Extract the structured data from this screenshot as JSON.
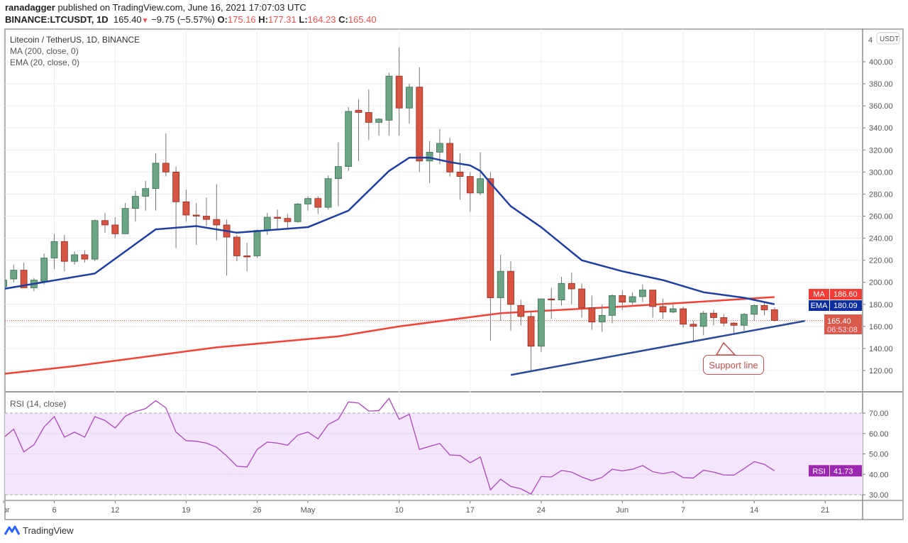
{
  "header": {
    "author": "ranadagger",
    "published_text": "published on TradingView.com, June 16, 2021 17:07:03 UTC",
    "symbol": "BINANCE:LTCUSDT, 1D",
    "last": "165.40",
    "change": "−9.75 (−5.57%)",
    "o_label": "O:",
    "o": "175.16",
    "h_label": "H:",
    "h": "177.31",
    "l_label": "L:",
    "l": "164.23",
    "c_label": "C:",
    "c": "165.40"
  },
  "legend": {
    "title": "Litecoin / TetherUS, 1D, BINANCE",
    "ma": "MA (200, close, 0)",
    "ema": "EMA (20, close, 0)",
    "rsi": "RSI (14, close)"
  },
  "badges": {
    "currency": "USDT",
    "ma_label": "MA",
    "ma_value": "186.60",
    "ema_label": "EMA",
    "ema_value": "180.09",
    "price_value": "165.40",
    "countdown": "06:53:08",
    "rsi_label": "RSI",
    "rsi_value": "41.73"
  },
  "annotation": {
    "text": "Support line"
  },
  "logo": {
    "text": "TradingView"
  },
  "colors": {
    "up": "#6ba583",
    "down": "#d75442",
    "ma": "#f44336",
    "ema": "#1e3fa0",
    "rsi": "#ab47bc",
    "support": "#2a4a9a"
  },
  "chart_data": [
    {
      "type": "candlestick",
      "price_axis": {
        "ticks": [
          "400.00",
          "380.00",
          "360.00",
          "340.00",
          "320.00",
          "300.00",
          "280.00",
          "260.00",
          "240.00",
          "220.00",
          "200.00",
          "180.00",
          "160.00",
          "140.00",
          "120.00"
        ],
        "top_partial": "4"
      },
      "x_axis": {
        "ticks": [
          {
            "label": "Apr",
            "date": "04-01"
          },
          {
            "label": "6",
            "date": "04-06"
          },
          {
            "label": "12",
            "date": "04-12"
          },
          {
            "label": "19",
            "date": "04-19"
          },
          {
            "label": "26",
            "date": "04-26"
          },
          {
            "label": "May",
            "date": "05-01"
          },
          {
            "label": "10",
            "date": "05-10"
          },
          {
            "label": "17",
            "date": "05-17"
          },
          {
            "label": "24",
            "date": "05-24"
          },
          {
            "label": "Jun",
            "date": "06-01"
          },
          {
            "label": "7",
            "date": "06-07"
          },
          {
            "label": "14",
            "date": "06-14"
          },
          {
            "label": "21",
            "date": "06-21"
          }
        ]
      },
      "candles_ohlc": [
        [
          "04-01",
          196,
          204,
          193,
          202
        ],
        [
          "04-02",
          203,
          216,
          200,
          211
        ],
        [
          "04-03",
          211,
          218,
          195,
          195
        ],
        [
          "04-04",
          195,
          204,
          192,
          202
        ],
        [
          "04-05",
          201,
          226,
          198,
          222
        ],
        [
          "04-06",
          222,
          244,
          212,
          237
        ],
        [
          "04-07",
          237,
          243,
          210,
          219
        ],
        [
          "04-08",
          219,
          228,
          216,
          225
        ],
        [
          "04-09",
          225,
          229,
          218,
          221
        ],
        [
          "04-10",
          221,
          257,
          219,
          256
        ],
        [
          "04-11",
          256,
          263,
          245,
          252
        ],
        [
          "04-12",
          252,
          259,
          240,
          244
        ],
        [
          "04-13",
          244,
          272,
          244,
          267
        ],
        [
          "04-14",
          267,
          283,
          255,
          278
        ],
        [
          "04-15",
          278,
          292,
          265,
          285
        ],
        [
          "04-16",
          285,
          317,
          265,
          308
        ],
        [
          "04-17",
          308,
          335,
          296,
          300
        ],
        [
          "04-18",
          300,
          305,
          231,
          273
        ],
        [
          "04-19",
          273,
          284,
          255,
          261
        ],
        [
          "04-20",
          261,
          272,
          234,
          260
        ],
        [
          "04-21",
          260,
          277,
          251,
          257
        ],
        [
          "04-22",
          257,
          289,
          238,
          252
        ],
        [
          "04-23",
          252,
          257,
          206,
          241
        ],
        [
          "04-24",
          241,
          243,
          219,
          224
        ],
        [
          "04-25",
          224,
          236,
          210,
          223
        ],
        [
          "04-26",
          224,
          248,
          222,
          247
        ],
        [
          "04-27",
          247,
          263,
          243,
          259
        ],
        [
          "04-28",
          259,
          266,
          248,
          258
        ],
        [
          "04-29",
          258,
          262,
          249,
          255
        ],
        [
          "04-30",
          255,
          272,
          254,
          271
        ],
        [
          "05-01",
          271,
          278,
          265,
          276
        ],
        [
          "05-02",
          276,
          278,
          262,
          268
        ],
        [
          "05-03",
          268,
          297,
          266,
          294
        ],
        [
          "05-04",
          294,
          327,
          269,
          305
        ],
        [
          "05-05",
          305,
          359,
          301,
          355
        ],
        [
          "05-06",
          356,
          366,
          310,
          354
        ],
        [
          "05-07",
          354,
          375,
          329,
          345
        ],
        [
          "05-08",
          345,
          349,
          333,
          348
        ],
        [
          "05-09",
          347,
          390,
          333,
          387
        ],
        [
          "05-10",
          387,
          413,
          333,
          358
        ],
        [
          "05-11",
          358,
          380,
          344,
          377
        ],
        [
          "05-12",
          377,
          395,
          300,
          310
        ],
        [
          "05-13",
          310,
          328,
          290,
          318
        ],
        [
          "05-14",
          318,
          339,
          307,
          326
        ],
        [
          "05-15",
          326,
          331,
          296,
          300
        ],
        [
          "05-16",
          300,
          317,
          275,
          296
        ],
        [
          "05-17",
          296,
          300,
          264,
          281
        ],
        [
          "05-18",
          281,
          318,
          279,
          294
        ],
        [
          "05-19",
          294,
          300,
          147,
          186
        ],
        [
          "05-20",
          186,
          225,
          165,
          210
        ],
        [
          "05-21",
          210,
          219,
          156,
          180
        ],
        [
          "05-22",
          179,
          184,
          161,
          169
        ],
        [
          "05-23",
          169,
          174,
          119,
          142
        ],
        [
          "05-24",
          142,
          185,
          137,
          185
        ],
        [
          "05-25",
          185,
          195,
          167,
          184
        ],
        [
          "05-26",
          184,
          205,
          179,
          199
        ],
        [
          "05-27",
          199,
          209,
          180,
          194
        ],
        [
          "05-28",
          194,
          199,
          168,
          177
        ],
        [
          "05-29",
          177,
          188,
          157,
          164
        ],
        [
          "05-30",
          164,
          180,
          155,
          170
        ],
        [
          "05-31",
          170,
          189,
          163,
          188
        ],
        [
          "06-01",
          188,
          193,
          175,
          182
        ],
        [
          "06-02",
          182,
          191,
          180,
          187
        ],
        [
          "06-03",
          187,
          198,
          182,
          193
        ],
        [
          "06-04",
          193,
          193,
          168,
          178
        ],
        [
          "06-05",
          178,
          185,
          167,
          173
        ],
        [
          "06-06",
          173,
          180,
          172,
          176
        ],
        [
          "06-07",
          176,
          178,
          159,
          162
        ],
        [
          "06-08",
          162,
          165,
          146,
          160
        ],
        [
          "06-09",
          160,
          174,
          152,
          172
        ],
        [
          "06-10",
          172,
          175,
          161,
          168
        ],
        [
          "06-11",
          168,
          171,
          160,
          163
        ],
        [
          "06-12",
          163,
          164,
          154,
          161
        ],
        [
          "06-13",
          161,
          172,
          156,
          171
        ],
        [
          "06-14",
          171,
          180,
          165,
          179
        ],
        [
          "06-15",
          179,
          181,
          170,
          175
        ],
        [
          "06-16",
          175.16,
          177.31,
          164.23,
          165.4
        ]
      ],
      "ema20": [
        [
          "04-01",
          194
        ],
        [
          "04-10",
          208
        ],
        [
          "04-16",
          248
        ],
        [
          "04-20",
          251
        ],
        [
          "04-24",
          245
        ],
        [
          "05-01",
          250
        ],
        [
          "05-05",
          265
        ],
        [
          "05-09",
          301
        ],
        [
          "05-11",
          313
        ],
        [
          "05-13",
          313
        ],
        [
          "05-15",
          309
        ],
        [
          "05-17",
          306
        ],
        [
          "05-18",
          301
        ],
        [
          "05-19",
          290
        ],
        [
          "05-21",
          269
        ],
        [
          "05-24",
          250
        ],
        [
          "05-28",
          220
        ],
        [
          "06-01",
          210
        ],
        [
          "06-05",
          202
        ],
        [
          "06-09",
          191
        ],
        [
          "06-13",
          186
        ],
        [
          "06-16",
          180.09
        ]
      ],
      "ma200": [
        [
          "04-01",
          117
        ],
        [
          "04-08",
          124
        ],
        [
          "04-22",
          141
        ],
        [
          "05-04",
          151
        ],
        [
          "05-10",
          160
        ],
        [
          "05-20",
          172
        ],
        [
          "06-01",
          178
        ],
        [
          "06-16",
          186.6
        ]
      ],
      "support_line": [
        [
          "05-21",
          116
        ],
        [
          "06-19",
          165
        ]
      ],
      "last_price": 165.4
    },
    {
      "type": "line",
      "title": "RSI (14, close)",
      "y_axis": {
        "ticks": [
          "70.00",
          "60.00",
          "50.00",
          "40.00",
          "30.00"
        ],
        "band": [
          30,
          70
        ]
      },
      "values": [
        58.0,
        62.1,
        51,
        54.5,
        63.2,
        68.3,
        58.2,
        60.7,
        58.2,
        68.3,
        66.4,
        62.7,
        68.5,
        70.8,
        72.2,
        76.1,
        72.6,
        60.7,
        56.5,
        56.2,
        55.3,
        53.3,
        49,
        44,
        43.6,
        52.2,
        55.8,
        55.3,
        54.3,
        59.2,
        60.7,
        57.4,
        64.4,
        67,
        75.5,
        74.9,
        71,
        71.2,
        77.2,
        67,
        69.4,
        52.2,
        53.7,
        55.1,
        49.5,
        49.2,
        45.7,
        48.5,
        32.4,
        37.6,
        34.1,
        32.9,
        30.3,
        38.9,
        38.7,
        41.9,
        41.1,
        38.7,
        36.9,
        38.5,
        42.5,
        41.7,
        42.5,
        44.3,
        41.3,
        40.3,
        41.3,
        38.4,
        38.2,
        42,
        41.1,
        39.7,
        39.6,
        42.8,
        46.2,
        44.9,
        41.73
      ]
    }
  ]
}
